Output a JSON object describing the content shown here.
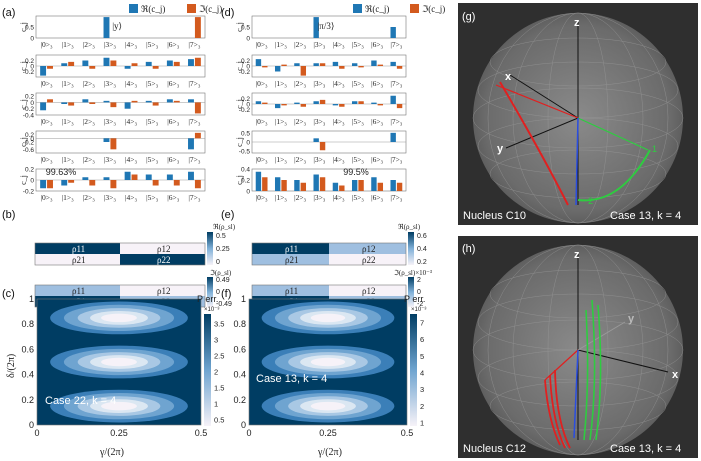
{
  "colors": {
    "real": "#1f77b4",
    "imag": "#d35a1e",
    "dark_cell": "#003d63",
    "light_cell": "#9fbfe0",
    "pale_cell": "#f7f2f8",
    "sphere_bg": "#2f2f2f",
    "red": "#e02020",
    "green": "#2ecc40",
    "blue": "#2a4de0"
  },
  "legend": {
    "real": "ℜ(c_j)",
    "imag": "ℑ(c_j)"
  },
  "panel_labels": [
    "(a)",
    "(b)",
    "(c)",
    "(d)",
    "(e)",
    "(f)",
    "(g)",
    "(h)"
  ],
  "basis_labels": [
    "|0>₃",
    "|1>₃",
    "|2>₃",
    "|3>₃",
    "|4>₃",
    "|5>₃",
    "|6>₃",
    "|7>₃"
  ],
  "ylabel_c": "c_j",
  "chart_data": [
    {
      "type": "bar",
      "panel": "a",
      "title": "|y⟩",
      "annotation": "",
      "categories": [
        "|0>₃",
        "|1>₃",
        "|2>₃",
        "|3>₃",
        "|4>₃",
        "|5>₃",
        "|6>₃",
        "|7>₃"
      ],
      "ylim": [
        0,
        1
      ],
      "yticks": [
        "0",
        "0.5"
      ],
      "series": [
        {
          "name": "ℜ(c_j)",
          "values": [
            0,
            0,
            0,
            0.95,
            0,
            0,
            0,
            0
          ]
        },
        {
          "name": "ℑ(c_j)",
          "values": [
            0,
            0,
            0,
            0,
            0,
            0,
            0,
            0.95
          ]
        }
      ]
    },
    {
      "type": "bar",
      "panel": "a",
      "title": "",
      "annotation": "",
      "categories": [
        "|0>₃",
        "|1>₃",
        "|2>₃",
        "|3>₃",
        "|4>₃",
        "|5>₃",
        "|6>₃",
        "|7>₃"
      ],
      "ylim": [
        -0.4,
        0.4
      ],
      "yticks": [
        "0.2",
        "0",
        "-0.2"
      ],
      "series": [
        {
          "name": "ℜ(c_j)",
          "values": [
            -0.35,
            0.1,
            0.2,
            0.3,
            -0.1,
            0.15,
            0.2,
            0.25
          ]
        },
        {
          "name": "ℑ(c_j)",
          "values": [
            -0.1,
            0.15,
            -0.1,
            0.2,
            0.1,
            -0.1,
            0.15,
            0.3
          ]
        }
      ]
    },
    {
      "type": "bar",
      "panel": "a",
      "title": "",
      "annotation": "",
      "categories": [
        "|0>₃",
        "|1>₃",
        "|2>₃",
        "|3>₃",
        "|4>₃",
        "|5>₃",
        "|6>₃",
        "|7>₃"
      ],
      "ylim": [
        -0.4,
        0.3
      ],
      "yticks": [
        "0.2",
        "0",
        "-0.2",
        "-0.4"
      ],
      "series": [
        {
          "name": "ℜ(c_j)",
          "values": [
            -0.25,
            -0.05,
            0.1,
            0.05,
            -0.2,
            0.05,
            0.1,
            0.1
          ]
        },
        {
          "name": "ℑ(c_j)",
          "values": [
            0.1,
            -0.1,
            -0.05,
            -0.15,
            0.05,
            -0.1,
            0.05,
            -0.35
          ]
        }
      ]
    },
    {
      "type": "bar",
      "panel": "a",
      "title": "",
      "annotation": "",
      "categories": [
        "|0>₃",
        "|1>₃",
        "|2>₃",
        "|3>₃",
        "|4>₃",
        "|5>₃",
        "|6>₃",
        "|7>₃"
      ],
      "ylim": [
        -0.8,
        0.4
      ],
      "yticks": [
        "0.2",
        "0",
        "-0.2",
        "-0.6"
      ],
      "series": [
        {
          "name": "ℜ(c_j)",
          "values": [
            0,
            0,
            0,
            -0.2,
            0,
            0,
            0,
            -0.6
          ]
        },
        {
          "name": "ℑ(c_j)",
          "values": [
            0,
            0,
            0,
            -0.6,
            0,
            0,
            0,
            0.3
          ]
        }
      ]
    },
    {
      "type": "bar",
      "panel": "a",
      "title": "",
      "annotation": "99.63%",
      "categories": [
        "|0>₃",
        "|1>₃",
        "|2>₃",
        "|3>₃",
        "|4>₃",
        "|5>₃",
        "|6>₃",
        "|7>₃"
      ],
      "ylim": [
        -0.2,
        0.2
      ],
      "yticks": [
        "0.2",
        "0",
        "-0.2"
      ],
      "series": [
        {
          "name": "ℜ(c_j)",
          "values": [
            -0.15,
            -0.1,
            0.05,
            0.05,
            0.15,
            0.1,
            0.1,
            0.15
          ]
        },
        {
          "name": "ℑ(c_j)",
          "values": [
            -0.15,
            -0.05,
            -0.1,
            -0.15,
            0.1,
            -0.1,
            -0.1,
            -0.15
          ]
        }
      ]
    },
    {
      "type": "bar",
      "panel": "d",
      "title": "|π/3⟩",
      "annotation": "",
      "categories": [
        "|0>₃",
        "|1>₃",
        "|2>₃",
        "|3>₃",
        "|4>₃",
        "|5>₃",
        "|6>₃",
        "|7>₃"
      ],
      "ylim": [
        0,
        1
      ],
      "yticks": [
        "0",
        "0.5"
      ],
      "series": [
        {
          "name": "ℜ(c_j)",
          "values": [
            0,
            0,
            0,
            0.95,
            0,
            0,
            0,
            0.5
          ]
        },
        {
          "name": "ℑ(c_j)",
          "values": [
            0,
            0,
            0,
            0,
            0,
            0,
            0,
            0
          ]
        }
      ]
    },
    {
      "type": "bar",
      "panel": "d",
      "title": "",
      "annotation": "",
      "categories": [
        "|0>₃",
        "|1>₃",
        "|2>₃",
        "|3>₃",
        "|4>₃",
        "|5>₃",
        "|6>₃",
        "|7>₃"
      ],
      "ylim": [
        -0.4,
        0.4
      ],
      "yticks": [
        "0.2",
        "0",
        "-0.2"
      ],
      "series": [
        {
          "name": "ℜ(c_j)",
          "values": [
            0.25,
            -0.2,
            0.1,
            0.1,
            0.15,
            0.1,
            0.2,
            0.15
          ]
        },
        {
          "name": "ℑ(c_j)",
          "values": [
            -0.05,
            0.05,
            -0.35,
            0.1,
            -0.1,
            -0.05,
            0.05,
            -0.1
          ]
        }
      ]
    },
    {
      "type": "bar",
      "panel": "d",
      "title": "",
      "annotation": "",
      "categories": [
        "|0>₃",
        "|1>₃",
        "|2>₃",
        "|3>₃",
        "|4>₃",
        "|5>₃",
        "|6>₃",
        "|7>₃"
      ],
      "ylim": [
        -0.4,
        0.4
      ],
      "yticks": [
        "0.2",
        "0",
        "-0.2"
      ],
      "series": [
        {
          "name": "ℜ(c_j)",
          "values": [
            0.1,
            -0.15,
            0.05,
            0.1,
            -0.05,
            0.1,
            0.05,
            0.3
          ]
        },
        {
          "name": "ℑ(c_j)",
          "values": [
            0.05,
            -0.05,
            -0.1,
            0.15,
            -0.1,
            0.1,
            -0.05,
            -0.15
          ]
        }
      ]
    },
    {
      "type": "bar",
      "panel": "d",
      "title": "",
      "annotation": "",
      "categories": [
        "|0>₃",
        "|1>₃",
        "|2>₃",
        "|3>₃",
        "|4>₃",
        "|5>₃",
        "|6>₃",
        "|7>₃"
      ],
      "ylim": [
        -0.6,
        0.6
      ],
      "yticks": [
        "0.5",
        "0",
        "-0.5"
      ],
      "series": [
        {
          "name": "ℜ(c_j)",
          "values": [
            0,
            0,
            0,
            0.2,
            0,
            0,
            0,
            0.5
          ]
        },
        {
          "name": "ℑ(c_j)",
          "values": [
            0,
            0,
            0,
            -0.45,
            0,
            0,
            0,
            0
          ]
        }
      ]
    },
    {
      "type": "bar",
      "panel": "d",
      "title": "",
      "annotation": "99.5%",
      "categories": [
        "|0>₃",
        "|1>₃",
        "|2>₃",
        "|3>₃",
        "|4>₃",
        "|5>₃",
        "|6>₃",
        "|7>₃"
      ],
      "ylim": [
        0,
        0.4
      ],
      "yticks": [
        "0.4",
        "0.2",
        "0"
      ],
      "series": [
        {
          "name": "ℜ(c_j)",
          "values": [
            0.35,
            0.25,
            0.2,
            0.3,
            0.15,
            0.2,
            0.25,
            0.2
          ]
        },
        {
          "name": "ℑ(c_j)",
          "values": [
            0.25,
            0.2,
            0.15,
            0.25,
            0.1,
            0.2,
            0.15,
            0.15
          ]
        }
      ]
    },
    {
      "type": "heatmap",
      "panel": "b",
      "cell_labels": [
        "ρ11",
        "ρ12",
        "ρ21",
        "ρ22"
      ],
      "real": {
        "label": "ℜ(ρ_sl)",
        "values": [
          [
            0.5,
            0
          ],
          [
            0,
            0.5
          ]
        ],
        "range": [
          0,
          0.5
        ],
        "ticks": [
          "0.5",
          "0.25",
          "0"
        ]
      },
      "imag": {
        "label": "ℑ(ρ_sl)",
        "values": [
          [
            0,
            0.1
          ],
          [
            -0.1,
            0
          ]
        ],
        "range": [
          -0.49,
          0.49
        ],
        "ticks": [
          "0.49",
          "0",
          "-0.49"
        ]
      }
    },
    {
      "type": "heatmap",
      "panel": "e",
      "cell_labels": [
        "ρ11",
        "ρ12",
        "ρ21",
        "ρ22"
      ],
      "real": {
        "label": "ℜ(ρ_sl)",
        "values": [
          [
            0.7,
            0.3
          ],
          [
            0.3,
            0.1
          ]
        ],
        "range": [
          0,
          0.7
        ],
        "ticks": [
          "0.6",
          "0.4",
          "0.2"
        ]
      },
      "imag": {
        "label": "ℑ(ρ_sl)×10⁻³",
        "values": [
          [
            0,
            2
          ],
          [
            -2,
            0
          ]
        ],
        "range": [
          -2,
          2
        ],
        "ticks": [
          "2",
          "0",
          "-2"
        ]
      }
    },
    {
      "type": "heatmap",
      "panel": "c",
      "annotation": "Case 22, k = 4",
      "xlabel": "γ/(2π)",
      "ylabel": "δ/(2π)",
      "cbar_label": "P err.",
      "cbar_exp": "×10⁻³",
      "xticks": [
        "0",
        "0.25",
        "0.5"
      ],
      "yticks": [
        "0",
        "0.2",
        "0.4",
        "0.6",
        "0.8",
        "1"
      ],
      "cbar_ticks": [
        "3.5",
        "3",
        "2.5",
        "2",
        "1.5",
        "1",
        "0.5"
      ],
      "range": [
        0.3,
        3.8
      ],
      "minima_delta": [
        0.15,
        0.5,
        0.85
      ],
      "minimum_gamma": 0.25
    },
    {
      "type": "heatmap",
      "panel": "f",
      "annotation": "Case 13, k = 4",
      "xlabel": "γ/(2π)",
      "ylabel": "",
      "cbar_label": "P err.",
      "cbar_exp": "×10⁻³",
      "xticks": [
        "0",
        "0.25",
        "0.5"
      ],
      "yticks": [
        "0",
        "0.2",
        "0.4",
        "0.6",
        "0.8",
        "1"
      ],
      "cbar_ticks": [
        "7",
        "6",
        "5",
        "4",
        "3",
        "2",
        "1"
      ],
      "range": [
        0.8,
        7.5
      ],
      "minima_delta": [
        0.15,
        0.5,
        0.85
      ],
      "minimum_gamma": 0.25
    }
  ],
  "spheres": [
    {
      "panel": "(g)",
      "nucleus": "Nucleus C10",
      "case": "Case 13, k = 4",
      "axes": [
        "z",
        "x",
        "y"
      ],
      "markers": [
        "1",
        "2"
      ]
    },
    {
      "panel": "(h)",
      "nucleus": "Nucleus C12",
      "case": "Case 13, k = 4",
      "axes": [
        "z",
        "y",
        "x"
      ],
      "markers": []
    }
  ]
}
